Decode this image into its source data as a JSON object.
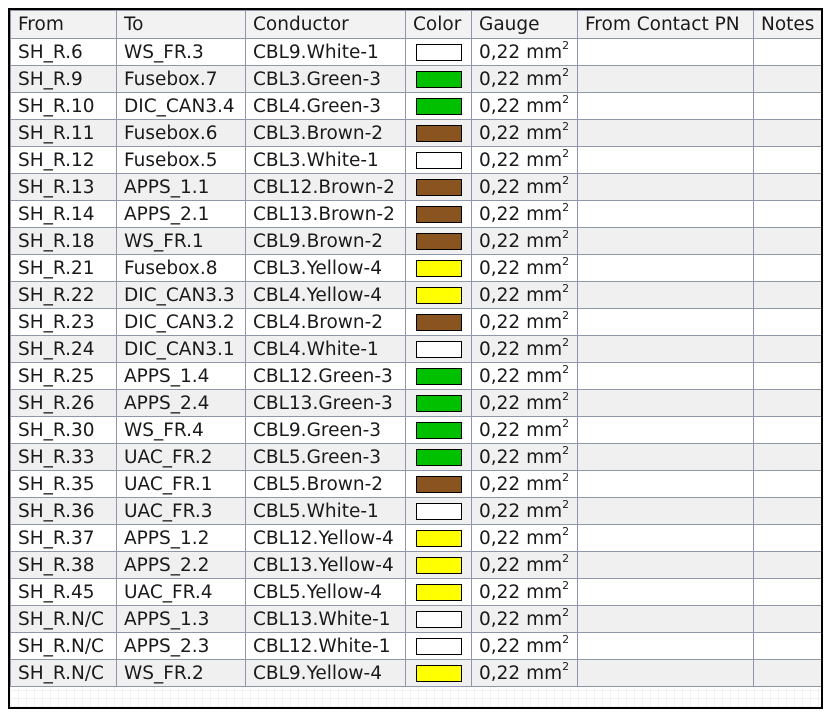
{
  "table": {
    "headers": [
      "From",
      "To",
      "Conductor",
      "Color",
      "Gauge",
      "From Contact PN",
      "Notes"
    ],
    "colors": {
      "White": "#ffffff",
      "Green": "#00c000",
      "Brown": "#8a5421",
      "Yellow": "#ffff00"
    },
    "rows": [
      {
        "from": "SH_R.6",
        "to": "WS_FR.3",
        "conductor": "CBL9.White-1",
        "color": "White",
        "gauge": "0,22 mm",
        "gauge_unit_exp": "2",
        "from_contact_pn": "",
        "notes": ""
      },
      {
        "from": "SH_R.9",
        "to": "Fusebox.7",
        "conductor": "CBL3.Green-3",
        "color": "Green",
        "gauge": "0,22 mm",
        "gauge_unit_exp": "2",
        "from_contact_pn": "",
        "notes": ""
      },
      {
        "from": "SH_R.10",
        "to": "DIC_CAN3.4",
        "conductor": "CBL4.Green-3",
        "color": "Green",
        "gauge": "0,22 mm",
        "gauge_unit_exp": "2",
        "from_contact_pn": "",
        "notes": ""
      },
      {
        "from": "SH_R.11",
        "to": "Fusebox.6",
        "conductor": "CBL3.Brown-2",
        "color": "Brown",
        "gauge": "0,22 mm",
        "gauge_unit_exp": "2",
        "from_contact_pn": "",
        "notes": ""
      },
      {
        "from": "SH_R.12",
        "to": "Fusebox.5",
        "conductor": "CBL3.White-1",
        "color": "White",
        "gauge": "0,22 mm",
        "gauge_unit_exp": "2",
        "from_contact_pn": "",
        "notes": ""
      },
      {
        "from": "SH_R.13",
        "to": "APPS_1.1",
        "conductor": "CBL12.Brown-2",
        "color": "Brown",
        "gauge": "0,22 mm",
        "gauge_unit_exp": "2",
        "from_contact_pn": "",
        "notes": ""
      },
      {
        "from": "SH_R.14",
        "to": "APPS_2.1",
        "conductor": "CBL13.Brown-2",
        "color": "Brown",
        "gauge": "0,22 mm",
        "gauge_unit_exp": "2",
        "from_contact_pn": "",
        "notes": ""
      },
      {
        "from": "SH_R.18",
        "to": "WS_FR.1",
        "conductor": "CBL9.Brown-2",
        "color": "Brown",
        "gauge": "0,22 mm",
        "gauge_unit_exp": "2",
        "from_contact_pn": "",
        "notes": ""
      },
      {
        "from": "SH_R.21",
        "to": "Fusebox.8",
        "conductor": "CBL3.Yellow-4",
        "color": "Yellow",
        "gauge": "0,22 mm",
        "gauge_unit_exp": "2",
        "from_contact_pn": "",
        "notes": ""
      },
      {
        "from": "SH_R.22",
        "to": "DIC_CAN3.3",
        "conductor": "CBL4.Yellow-4",
        "color": "Yellow",
        "gauge": "0,22 mm",
        "gauge_unit_exp": "2",
        "from_contact_pn": "",
        "notes": ""
      },
      {
        "from": "SH_R.23",
        "to": "DIC_CAN3.2",
        "conductor": "CBL4.Brown-2",
        "color": "Brown",
        "gauge": "0,22 mm",
        "gauge_unit_exp": "2",
        "from_contact_pn": "",
        "notes": ""
      },
      {
        "from": "SH_R.24",
        "to": "DIC_CAN3.1",
        "conductor": "CBL4.White-1",
        "color": "White",
        "gauge": "0,22 mm",
        "gauge_unit_exp": "2",
        "from_contact_pn": "",
        "notes": ""
      },
      {
        "from": "SH_R.25",
        "to": "APPS_1.4",
        "conductor": "CBL12.Green-3",
        "color": "Green",
        "gauge": "0,22 mm",
        "gauge_unit_exp": "2",
        "from_contact_pn": "",
        "notes": ""
      },
      {
        "from": "SH_R.26",
        "to": "APPS_2.4",
        "conductor": "CBL13.Green-3",
        "color": "Green",
        "gauge": "0,22 mm",
        "gauge_unit_exp": "2",
        "from_contact_pn": "",
        "notes": ""
      },
      {
        "from": "SH_R.30",
        "to": "WS_FR.4",
        "conductor": "CBL9.Green-3",
        "color": "Green",
        "gauge": "0,22 mm",
        "gauge_unit_exp": "2",
        "from_contact_pn": "",
        "notes": ""
      },
      {
        "from": "SH_R.33",
        "to": "UAC_FR.2",
        "conductor": "CBL5.Green-3",
        "color": "Green",
        "gauge": "0,22 mm",
        "gauge_unit_exp": "2",
        "from_contact_pn": "",
        "notes": ""
      },
      {
        "from": "SH_R.35",
        "to": "UAC_FR.1",
        "conductor": "CBL5.Brown-2",
        "color": "Brown",
        "gauge": "0,22 mm",
        "gauge_unit_exp": "2",
        "from_contact_pn": "",
        "notes": ""
      },
      {
        "from": "SH_R.36",
        "to": "UAC_FR.3",
        "conductor": "CBL5.White-1",
        "color": "White",
        "gauge": "0,22 mm",
        "gauge_unit_exp": "2",
        "from_contact_pn": "",
        "notes": ""
      },
      {
        "from": "SH_R.37",
        "to": "APPS_1.2",
        "conductor": "CBL12.Yellow-4",
        "color": "Yellow",
        "gauge": "0,22 mm",
        "gauge_unit_exp": "2",
        "from_contact_pn": "",
        "notes": ""
      },
      {
        "from": "SH_R.38",
        "to": "APPS_2.2",
        "conductor": "CBL13.Yellow-4",
        "color": "Yellow",
        "gauge": "0,22 mm",
        "gauge_unit_exp": "2",
        "from_contact_pn": "",
        "notes": ""
      },
      {
        "from": "SH_R.45",
        "to": "UAC_FR.4",
        "conductor": "CBL5.Yellow-4",
        "color": "Yellow",
        "gauge": "0,22 mm",
        "gauge_unit_exp": "2",
        "from_contact_pn": "",
        "notes": ""
      },
      {
        "from": "SH_R.N/C",
        "to": "APPS_1.3",
        "conductor": "CBL13.White-1",
        "color": "White",
        "gauge": "0,22 mm",
        "gauge_unit_exp": "2",
        "from_contact_pn": "",
        "notes": ""
      },
      {
        "from": "SH_R.N/C",
        "to": "APPS_2.3",
        "conductor": "CBL12.White-1",
        "color": "White",
        "gauge": "0,22 mm",
        "gauge_unit_exp": "2",
        "from_contact_pn": "",
        "notes": ""
      },
      {
        "from": "SH_R.N/C",
        "to": "WS_FR.2",
        "conductor": "CBL9.Yellow-4",
        "color": "Yellow",
        "gauge": "0,22 mm",
        "gauge_unit_exp": "2",
        "from_contact_pn": "",
        "notes": ""
      }
    ]
  }
}
